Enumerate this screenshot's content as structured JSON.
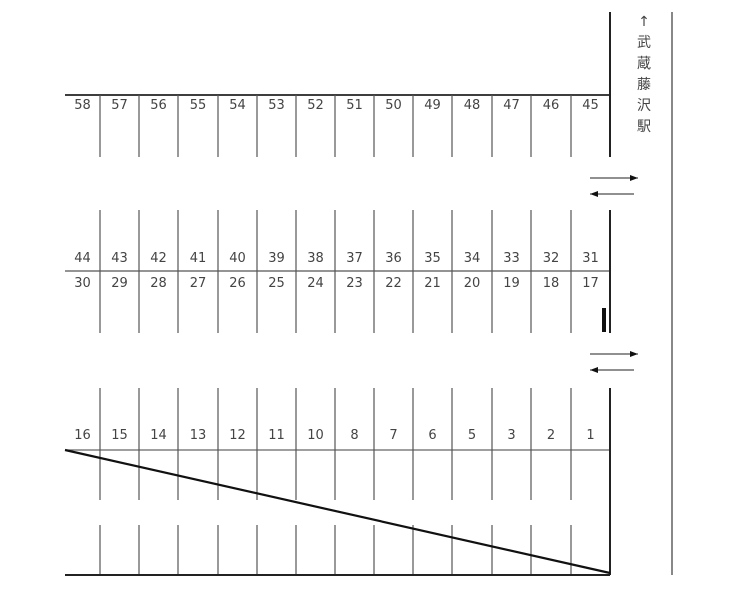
{
  "station_label": {
    "arrow": "↑",
    "chars": [
      "武",
      "蔵",
      "藤",
      "沢",
      "駅"
    ]
  },
  "rows": {
    "row1": [
      "58",
      "57",
      "56",
      "55",
      "54",
      "53",
      "52",
      "51",
      "50",
      "49",
      "48",
      "47",
      "46",
      "45"
    ],
    "row2_top": [
      "44",
      "43",
      "42",
      "41",
      "40",
      "39",
      "38",
      "37",
      "36",
      "35",
      "34",
      "33",
      "32",
      "31"
    ],
    "row2_bottom": [
      "30",
      "29",
      "28",
      "27",
      "26",
      "25",
      "24",
      "23",
      "22",
      "21",
      "20",
      "19",
      "18",
      "17"
    ],
    "row3": [
      "16",
      "15",
      "14",
      "13",
      "12",
      "11",
      "10",
      "8",
      "7",
      "6",
      "5",
      "3",
      "2",
      "1"
    ]
  }
}
